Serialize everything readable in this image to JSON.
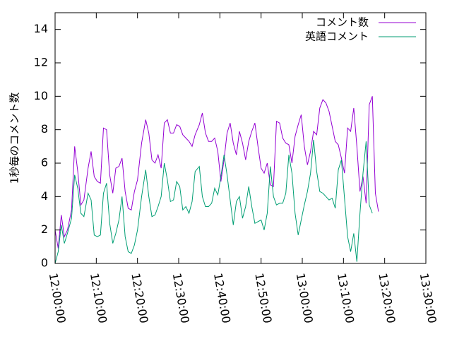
{
  "chart_data": {
    "type": "line",
    "title": "",
    "xlabel": "",
    "ylabel": "1秒毎のコメント数",
    "xlim": [
      "12:00:00",
      "13:30:00"
    ],
    "ylim": [
      0,
      15
    ],
    "x_ticks": [
      "12:00:00",
      "12:10:00",
      "12:20:00",
      "12:30:00",
      "12:40:00",
      "12:50:00",
      "13:00:00",
      "13:10:00",
      "13:20:00",
      "13:30:00"
    ],
    "y_ticks": [
      "0",
      "2",
      "4",
      "6",
      "8",
      "10",
      "12",
      "14"
    ],
    "grid": false,
    "legend": "top-right",
    "series": [
      {
        "name": "コメント数",
        "color": "#9400d3",
        "points": [
          [
            "12:00:00",
            2.0
          ],
          [
            "12:00:45",
            0.9
          ],
          [
            "12:01:30",
            2.9
          ],
          [
            "12:02:15",
            1.6
          ],
          [
            "12:03:00",
            2.0
          ],
          [
            "12:04:00",
            3.2
          ],
          [
            "12:04:45",
            7.0
          ],
          [
            "12:05:30",
            5.5
          ],
          [
            "12:06:15",
            3.5
          ],
          [
            "12:07:00",
            3.8
          ],
          [
            "12:08:00",
            5.7
          ],
          [
            "12:08:45",
            6.7
          ],
          [
            "12:09:30",
            5.2
          ],
          [
            "12:10:15",
            4.9
          ],
          [
            "12:11:00",
            4.8
          ],
          [
            "12:11:45",
            8.1
          ],
          [
            "12:12:30",
            8.0
          ],
          [
            "12:13:15",
            5.3
          ],
          [
            "12:14:00",
            4.2
          ],
          [
            "12:14:45",
            5.7
          ],
          [
            "12:15:30",
            5.8
          ],
          [
            "12:16:15",
            6.3
          ],
          [
            "12:17:00",
            4.3
          ],
          [
            "12:17:45",
            3.3
          ],
          [
            "12:18:30",
            3.2
          ],
          [
            "12:19:15",
            4.3
          ],
          [
            "12:20:00",
            5.0
          ],
          [
            "12:21:00",
            7.2
          ],
          [
            "12:22:00",
            8.6
          ],
          [
            "12:22:45",
            7.8
          ],
          [
            "12:23:30",
            6.2
          ],
          [
            "12:24:15",
            6.0
          ],
          [
            "12:25:00",
            6.5
          ],
          [
            "12:25:45",
            5.7
          ],
          [
            "12:26:30",
            8.4
          ],
          [
            "12:27:15",
            8.6
          ],
          [
            "12:28:00",
            7.8
          ],
          [
            "12:28:45",
            7.8
          ],
          [
            "12:29:30",
            8.3
          ],
          [
            "12:30:15",
            8.2
          ],
          [
            "12:31:00",
            7.7
          ],
          [
            "12:31:45",
            7.5
          ],
          [
            "12:32:30",
            7.3
          ],
          [
            "12:33:15",
            7.0
          ],
          [
            "12:34:00",
            7.7
          ],
          [
            "12:35:00",
            8.3
          ],
          [
            "12:35:45",
            9.0
          ],
          [
            "12:36:30",
            7.8
          ],
          [
            "12:37:15",
            7.3
          ],
          [
            "12:38:00",
            7.3
          ],
          [
            "12:38:45",
            7.5
          ],
          [
            "12:39:30",
            6.7
          ],
          [
            "12:40:15",
            4.9
          ],
          [
            "12:41:00",
            6.2
          ],
          [
            "12:41:45",
            7.8
          ],
          [
            "12:42:30",
            8.4
          ],
          [
            "12:43:15",
            7.2
          ],
          [
            "12:44:00",
            6.5
          ],
          [
            "12:44:45",
            7.9
          ],
          [
            "12:45:30",
            7.2
          ],
          [
            "12:46:15",
            6.2
          ],
          [
            "12:47:00",
            7.3
          ],
          [
            "12:47:45",
            7.9
          ],
          [
            "12:48:30",
            8.4
          ],
          [
            "12:49:15",
            7.0
          ],
          [
            "12:50:00",
            5.7
          ],
          [
            "12:50:45",
            5.4
          ],
          [
            "12:51:30",
            6.0
          ],
          [
            "12:52:15",
            4.7
          ],
          [
            "12:53:00",
            4.6
          ],
          [
            "12:53:45",
            8.5
          ],
          [
            "12:54:30",
            8.4
          ],
          [
            "12:55:15",
            7.5
          ],
          [
            "12:56:00",
            7.2
          ],
          [
            "12:56:45",
            7.1
          ],
          [
            "12:57:30",
            6.0
          ],
          [
            "12:58:15",
            7.6
          ],
          [
            "12:59:00",
            8.3
          ],
          [
            "12:59:45",
            8.9
          ],
          [
            "13:00:30",
            7.0
          ],
          [
            "13:01:15",
            5.9
          ],
          [
            "13:02:00",
            6.7
          ],
          [
            "13:02:45",
            7.9
          ],
          [
            "13:03:30",
            7.7
          ],
          [
            "13:04:15",
            9.3
          ],
          [
            "13:05:00",
            9.8
          ],
          [
            "13:05:45",
            9.6
          ],
          [
            "13:06:30",
            9.1
          ],
          [
            "13:07:15",
            8.2
          ],
          [
            "13:08:00",
            7.3
          ],
          [
            "13:08:45",
            7.1
          ],
          [
            "13:09:30",
            6.3
          ],
          [
            "13:10:15",
            5.4
          ],
          [
            "13:11:00",
            8.1
          ],
          [
            "13:11:45",
            7.9
          ],
          [
            "13:12:30",
            9.3
          ],
          [
            "13:13:15",
            7.0
          ],
          [
            "13:14:00",
            4.3
          ],
          [
            "13:14:45",
            5.2
          ],
          [
            "13:15:30",
            3.6
          ],
          [
            "13:16:15",
            9.5
          ],
          [
            "13:17:00",
            10.0
          ],
          [
            "13:17:45",
            4.2
          ],
          [
            "13:18:30",
            3.1
          ]
        ]
      },
      {
        "name": "英語コメント",
        "color": "#009e73",
        "points": [
          [
            "12:00:00",
            0.0
          ],
          [
            "12:00:45",
            0.7
          ],
          [
            "12:01:30",
            2.3
          ],
          [
            "12:02:15",
            1.2
          ],
          [
            "12:03:00",
            1.8
          ],
          [
            "12:04:00",
            2.7
          ],
          [
            "12:04:45",
            5.3
          ],
          [
            "12:05:30",
            4.5
          ],
          [
            "12:06:15",
            3.0
          ],
          [
            "12:07:00",
            2.8
          ],
          [
            "12:08:00",
            4.2
          ],
          [
            "12:08:45",
            3.8
          ],
          [
            "12:09:30",
            1.7
          ],
          [
            "12:10:15",
            1.6
          ],
          [
            "12:11:00",
            1.7
          ],
          [
            "12:11:45",
            4.2
          ],
          [
            "12:12:30",
            4.8
          ],
          [
            "12:13:15",
            2.4
          ],
          [
            "12:14:00",
            1.2
          ],
          [
            "12:14:45",
            1.8
          ],
          [
            "12:15:30",
            2.6
          ],
          [
            "12:16:15",
            4.0
          ],
          [
            "12:17:00",
            1.6
          ],
          [
            "12:17:45",
            0.7
          ],
          [
            "12:18:30",
            0.6
          ],
          [
            "12:19:15",
            1.1
          ],
          [
            "12:20:00",
            2.0
          ],
          [
            "12:21:00",
            4.0
          ],
          [
            "12:22:00",
            5.6
          ],
          [
            "12:22:45",
            4.0
          ],
          [
            "12:23:30",
            2.8
          ],
          [
            "12:24:15",
            2.9
          ],
          [
            "12:25:00",
            3.4
          ],
          [
            "12:25:45",
            4.0
          ],
          [
            "12:26:30",
            6.0
          ],
          [
            "12:27:15",
            5.0
          ],
          [
            "12:28:00",
            3.7
          ],
          [
            "12:28:45",
            3.8
          ],
          [
            "12:29:30",
            4.9
          ],
          [
            "12:30:15",
            4.6
          ],
          [
            "12:31:00",
            3.2
          ],
          [
            "12:31:45",
            3.4
          ],
          [
            "12:32:30",
            3.0
          ],
          [
            "12:33:15",
            3.7
          ],
          [
            "12:34:00",
            5.5
          ],
          [
            "12:35:00",
            5.8
          ],
          [
            "12:35:45",
            4.0
          ],
          [
            "12:36:30",
            3.4
          ],
          [
            "12:37:15",
            3.4
          ],
          [
            "12:38:00",
            3.6
          ],
          [
            "12:38:45",
            4.5
          ],
          [
            "12:39:30",
            4.1
          ],
          [
            "12:40:15",
            5.2
          ],
          [
            "12:41:00",
            6.5
          ],
          [
            "12:41:45",
            5.3
          ],
          [
            "12:42:30",
            3.8
          ],
          [
            "12:43:15",
            2.3
          ],
          [
            "12:44:00",
            3.7
          ],
          [
            "12:44:45",
            4.0
          ],
          [
            "12:45:30",
            2.7
          ],
          [
            "12:46:15",
            3.4
          ],
          [
            "12:47:00",
            4.6
          ],
          [
            "12:47:45",
            3.4
          ],
          [
            "12:48:30",
            2.4
          ],
          [
            "12:49:15",
            2.5
          ],
          [
            "12:50:00",
            2.6
          ],
          [
            "12:50:45",
            2.0
          ],
          [
            "12:51:30",
            3.0
          ],
          [
            "12:52:15",
            5.8
          ],
          [
            "12:53:00",
            4.0
          ],
          [
            "12:53:45",
            3.5
          ],
          [
            "12:54:30",
            3.6
          ],
          [
            "12:55:15",
            3.6
          ],
          [
            "12:56:00",
            4.2
          ],
          [
            "12:56:45",
            6.5
          ],
          [
            "12:57:30",
            5.4
          ],
          [
            "12:58:15",
            3.0
          ],
          [
            "12:59:00",
            1.7
          ],
          [
            "12:59:45",
            2.6
          ],
          [
            "13:00:30",
            3.5
          ],
          [
            "13:01:15",
            4.3
          ],
          [
            "13:02:00",
            5.4
          ],
          [
            "13:02:45",
            7.4
          ],
          [
            "13:03:30",
            5.5
          ],
          [
            "13:04:15",
            4.3
          ],
          [
            "13:05:00",
            4.2
          ],
          [
            "13:05:45",
            4.0
          ],
          [
            "13:06:30",
            3.8
          ],
          [
            "13:07:15",
            3.9
          ],
          [
            "13:08:00",
            3.3
          ],
          [
            "13:08:45",
            5.6
          ],
          [
            "13:09:30",
            6.2
          ],
          [
            "13:10:15",
            3.9
          ],
          [
            "13:11:00",
            1.6
          ],
          [
            "13:11:45",
            0.7
          ],
          [
            "13:12:30",
            1.8
          ],
          [
            "13:13:15",
            0.1
          ],
          [
            "13:14:00",
            3.0
          ],
          [
            "13:14:45",
            5.4
          ],
          [
            "13:15:30",
            7.3
          ],
          [
            "13:16:15",
            3.5
          ],
          [
            "13:17:00",
            3.0
          ]
        ]
      }
    ]
  }
}
